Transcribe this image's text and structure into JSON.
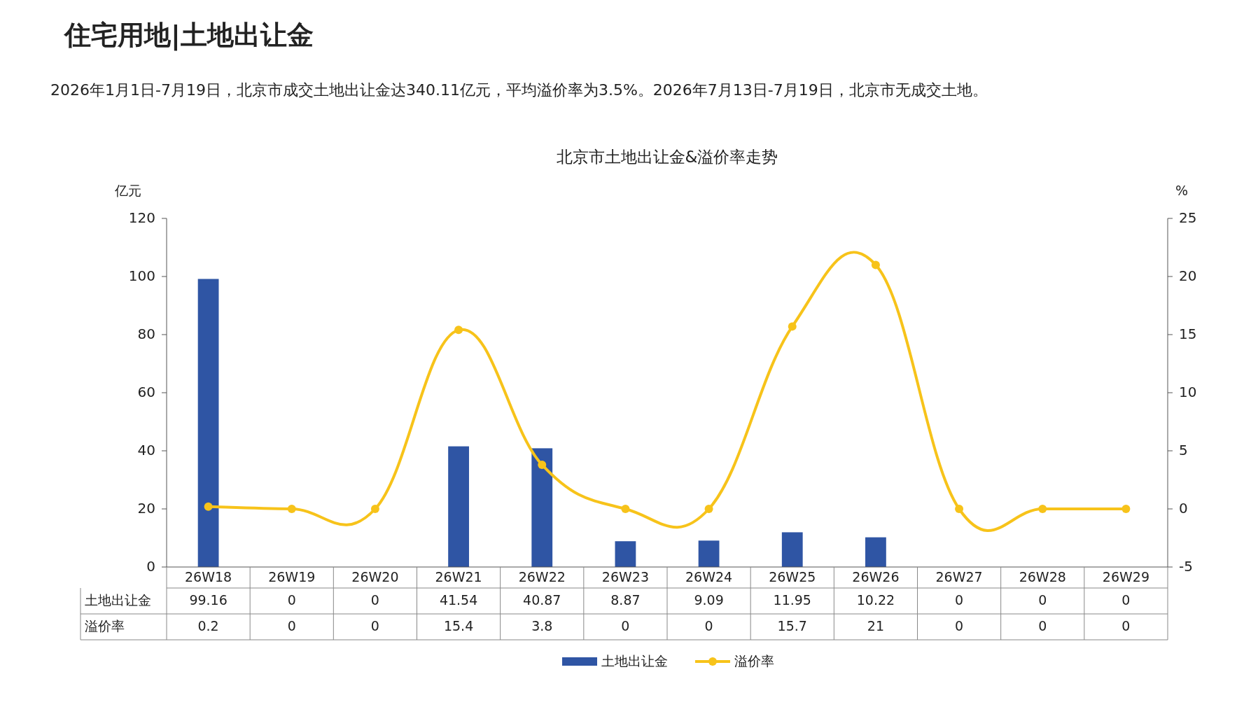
{
  "chart_data": {
    "type": "bar",
    "title": "北京市土地出让金&溢价率走势",
    "annotations": [
      "住宅用地|土地出让金",
      "2026年1月1日-7月19日，北京市成交土地出让金达340.11亿元，平均溢价率为3.5%。2026年7月13日-7月19日，北京市无成交土地。"
    ],
    "ylabel": "亿元",
    "y2label": "%",
    "categories": [
      "26W18",
      "26W19",
      "26W20",
      "26W21",
      "26W22",
      "26W23",
      "26W24",
      "26W25",
      "26W26",
      "26W27",
      "26W28",
      "26W29"
    ],
    "series": [
      {
        "name": "土地出让金",
        "color": "#2f55a4",
        "values": [
          99.16,
          0,
          0,
          41.54,
          40.87,
          8.87,
          9.09,
          11.95,
          10.22,
          0,
          0,
          0
        ]
      },
      {
        "name": "溢价率",
        "type": "line",
        "axis": "y2",
        "color": "#f7c31a",
        "marker": "circle",
        "values": [
          0.2,
          0,
          0,
          15.4,
          3.8,
          0,
          0,
          15.7,
          21,
          0,
          0,
          0
        ]
      }
    ],
    "ylim": [
      0,
      120
    ],
    "yticks": [
      0,
      20,
      40,
      60,
      80,
      100,
      120
    ],
    "y2lim": [
      -5,
      25
    ],
    "y2ticks": [
      -5,
      0,
      5,
      10,
      15,
      20,
      25
    ],
    "data_labels": true,
    "legend": "bottom",
    "grid": false
  }
}
